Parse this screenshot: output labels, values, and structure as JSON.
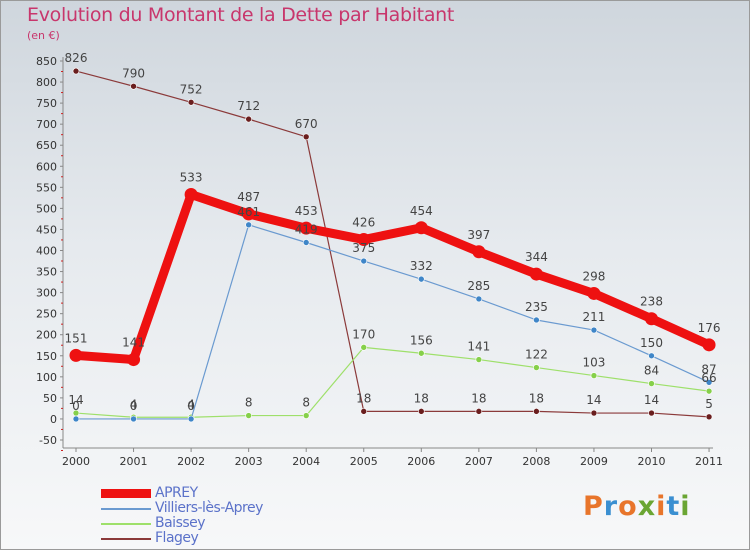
{
  "title": "Evolution du Montant de la Dette par Habitant",
  "subtitle": "(en €)",
  "logo_text": [
    "P",
    "r",
    "o",
    "x",
    "i",
    "t",
    "i"
  ],
  "logo_colors": [
    "#e8752b",
    "#3a8fd1",
    "#e8752b",
    "#6aa533",
    "#e8752b",
    "#3a8fd1",
    "#6aa533"
  ],
  "chart_data": {
    "type": "line",
    "title": "Evolution du Montant de la Dette par Habitant",
    "ylabel": "(en €)",
    "x": [
      "2000",
      "2001",
      "2002",
      "2003",
      "2004",
      "2005",
      "2006",
      "2007",
      "2008",
      "2009",
      "2010",
      "2011"
    ],
    "ylim": [
      -50,
      850
    ],
    "yticks": [
      -50,
      0,
      50,
      100,
      150,
      200,
      250,
      300,
      350,
      400,
      450,
      500,
      550,
      600,
      650,
      700,
      750,
      800,
      850
    ],
    "grid": false,
    "legend_position": "bottom-left",
    "series": [
      {
        "name": "APREY",
        "color": "#ee1111",
        "values": [
          151,
          141,
          533,
          487,
          453,
          426,
          454,
          397,
          344,
          298,
          238,
          176
        ],
        "labels": [
          "151",
          "141",
          "533",
          "487",
          "453",
          "426",
          "454",
          "397",
          "344",
          "298",
          "238",
          "176"
        ]
      },
      {
        "name": "Villiers-lès-Aprey",
        "color": "#6a9ad0",
        "values": [
          0,
          0,
          0,
          461,
          419,
          375,
          332,
          285,
          235,
          211,
          150,
          87
        ],
        "labels": [
          "0",
          "0",
          "0",
          "461",
          "419",
          "375",
          "332",
          "285",
          "235",
          "211",
          "150",
          "87"
        ]
      },
      {
        "name": "Baissey",
        "color": "#9ee06a",
        "values": [
          14,
          4,
          4,
          8,
          8,
          170,
          156,
          141,
          122,
          103,
          84,
          66
        ],
        "labels": [
          "14",
          "4",
          "4",
          "8",
          "8",
          "170",
          "156",
          "141",
          "122",
          "103",
          "84",
          "66"
        ]
      },
      {
        "name": "Flagey",
        "color": "#8b3a3a",
        "values": [
          826,
          790,
          752,
          712,
          670,
          18,
          18,
          18,
          18,
          14,
          14,
          5
        ],
        "labels": [
          "826",
          "790",
          "752",
          "712",
          "670",
          "18",
          "18",
          "18",
          "18",
          "14",
          "14",
          "5"
        ]
      }
    ]
  }
}
